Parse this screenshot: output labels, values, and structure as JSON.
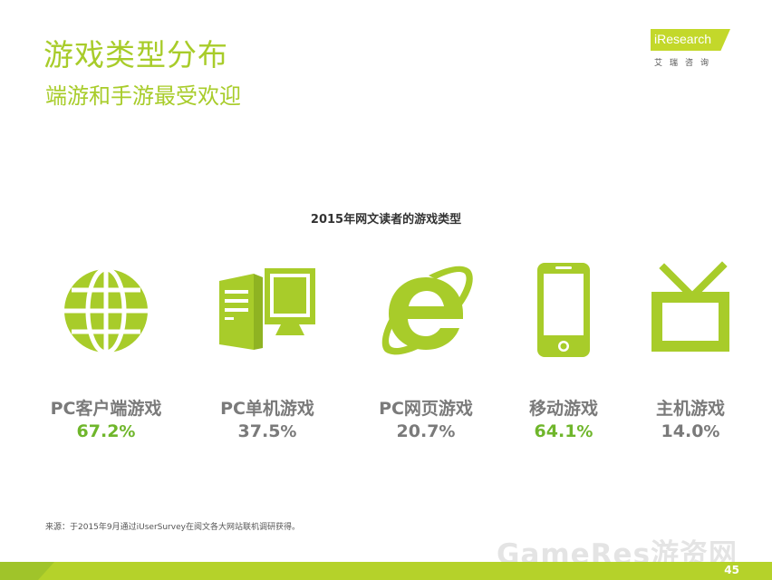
{
  "header": {
    "title": "游戏类型分布",
    "subtitle": "端游和手游最受欢迎"
  },
  "logo": {
    "brand": "iResearch",
    "cn": "艾瑞咨询"
  },
  "chart_data": {
    "type": "bar",
    "title": "2015年网文读者的游戏类型",
    "categories": [
      "PC客户端游戏",
      "PC单机游戏",
      "PC网页游戏",
      "移动游戏",
      "主机游戏"
    ],
    "values": [
      67.2,
      37.5,
      20.7,
      64.1,
      14.0
    ],
    "value_labels": [
      "67.2",
      "37.5",
      "20.7",
      "64.1",
      "14.0"
    ],
    "unit": "%",
    "highlighted": [
      true,
      false,
      false,
      true,
      false
    ],
    "icons": [
      "globe-icon",
      "desktop-computer-icon",
      "internet-explorer-icon",
      "smartphone-icon",
      "tv-icon"
    ],
    "colors": {
      "icon": "#a8cc2a",
      "highlight": "#6fb62b",
      "normal": "#7a7a7a"
    }
  },
  "footer": {
    "source": "来源：于2015年9月通过iUserSurvey在阅文各大网站联机调研获得。",
    "page_number": "45",
    "watermark": "GameRes游资网"
  }
}
